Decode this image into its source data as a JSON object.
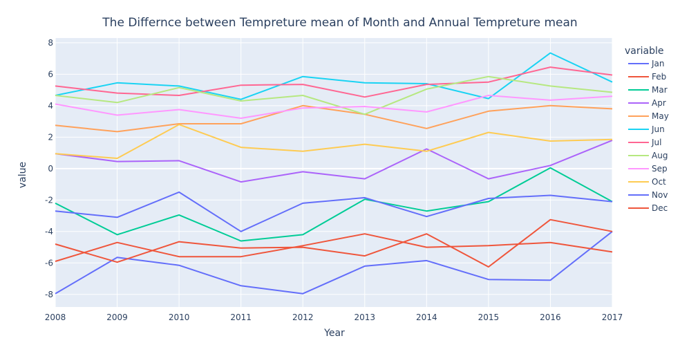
{
  "chart_data": {
    "type": "line",
    "title": "The Differnce between Tempreture mean of Month and Annual Tempreture mean",
    "xlabel": "Year",
    "ylabel": "value",
    "legend_title": "variable",
    "legend_position": "right",
    "grid": true,
    "x": [
      2008,
      2009,
      2010,
      2011,
      2012,
      2013,
      2014,
      2015,
      2016,
      2017
    ],
    "xlim": [
      2008,
      2017
    ],
    "ylim": [
      -8.8,
      8.3
    ],
    "yticks": [
      -8,
      -6,
      -4,
      -2,
      0,
      2,
      4,
      6,
      8
    ],
    "series": [
      {
        "name": "Jan",
        "color": "#636efa",
        "values": [
          -7.95,
          -5.65,
          -6.15,
          -7.45,
          -7.95,
          -6.2,
          -5.85,
          -7.05,
          -7.1,
          -4.0
        ]
      },
      {
        "name": "Feb",
        "color": "#EF553B",
        "values": [
          -5.9,
          -4.7,
          -5.6,
          -5.6,
          -4.9,
          -4.15,
          -5.0,
          -4.9,
          -4.7,
          -5.3
        ]
      },
      {
        "name": "Mar",
        "color": "#00cc96",
        "values": [
          -2.2,
          -4.2,
          -2.95,
          -4.6,
          -4.2,
          -1.95,
          -2.7,
          -2.1,
          0.05,
          -2.1
        ]
      },
      {
        "name": "Apr",
        "color": "#ab63fa",
        "values": [
          0.95,
          0.45,
          0.5,
          -0.85,
          -0.2,
          -0.65,
          1.25,
          -0.65,
          0.2,
          1.8
        ]
      },
      {
        "name": "May",
        "color": "#FFA15A",
        "values": [
          2.75,
          2.35,
          2.85,
          2.85,
          4.0,
          3.45,
          2.55,
          3.65,
          4.0,
          3.8
        ]
      },
      {
        "name": "Jun",
        "color": "#19d3f3",
        "values": [
          4.65,
          5.45,
          5.25,
          4.4,
          5.85,
          5.45,
          5.4,
          4.45,
          7.35,
          5.5
        ]
      },
      {
        "name": "Jul",
        "color": "#FF6692",
        "values": [
          5.25,
          4.8,
          4.65,
          5.3,
          5.35,
          4.55,
          5.35,
          5.5,
          6.45,
          5.95
        ]
      },
      {
        "name": "Aug",
        "color": "#B6E880",
        "values": [
          4.65,
          4.2,
          5.15,
          4.3,
          4.65,
          3.45,
          5.05,
          5.85,
          5.25,
          4.85
        ]
      },
      {
        "name": "Sep",
        "color": "#FF97FF",
        "values": [
          4.1,
          3.4,
          3.75,
          3.2,
          3.85,
          3.95,
          3.6,
          4.65,
          4.35,
          4.6
        ]
      },
      {
        "name": "Oct",
        "color": "#FECB52",
        "values": [
          0.95,
          0.65,
          2.8,
          1.35,
          1.1,
          1.55,
          1.1,
          2.3,
          1.75,
          1.85
        ]
      },
      {
        "name": "Nov",
        "color": "#636efa",
        "values": [
          -2.7,
          -3.1,
          -1.5,
          -4.0,
          -2.2,
          -1.85,
          -3.05,
          -1.9,
          -1.7,
          -2.1
        ]
      },
      {
        "name": "Dec",
        "color": "#EF553B",
        "values": [
          -4.8,
          -5.95,
          -4.65,
          -5.05,
          -5.0,
          -5.55,
          -4.15,
          -6.25,
          -3.25,
          -4.0
        ]
      }
    ]
  }
}
